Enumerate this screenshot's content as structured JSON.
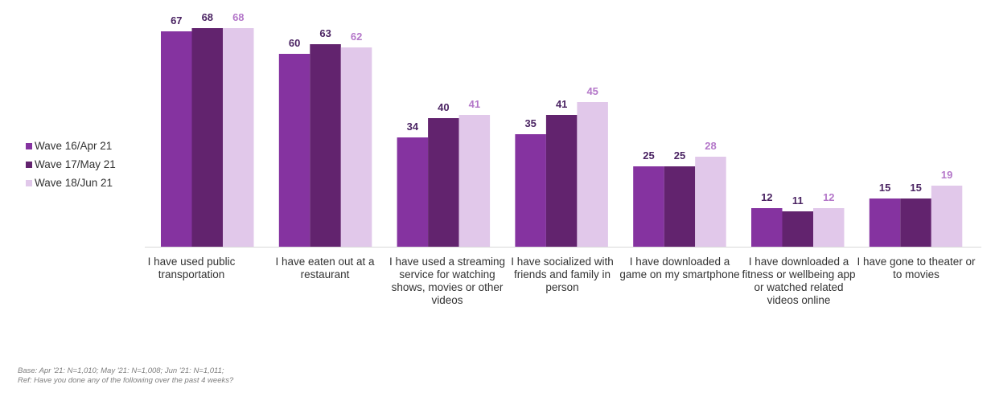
{
  "chart_data": {
    "type": "bar",
    "categories": [
      "I have used public transportation",
      "I have eaten out at a restaurant",
      "I have used a streaming service for watching shows, movies or other videos",
      "I have socialized with friends and family in person",
      "I have downloaded a game on my smartphone",
      "I have downloaded a fitness or wellbeing app or watched related videos online",
      "I have gone to theater or to movies"
    ],
    "series": [
      {
        "name": "Wave 16/Apr 21",
        "color": "#8533a0",
        "label_color": "#4b2463",
        "values": [
          67,
          60,
          34,
          35,
          25,
          12,
          15
        ]
      },
      {
        "name": "Wave 17/May 21",
        "color": "#62236e",
        "label_color": "#4b2463",
        "values": [
          68,
          63,
          40,
          41,
          25,
          11,
          15
        ]
      },
      {
        "name": "Wave 18/Jun 21",
        "color": "#e1c8ea",
        "label_color": "#b477c9",
        "values": [
          68,
          62,
          41,
          45,
          28,
          12,
          19
        ]
      }
    ],
    "ylim": [
      0,
      68
    ],
    "legend_position": "left",
    "grid": false
  },
  "footnotes": {
    "base": "Base: Apr '21: N=1,010; May '21: N=1,008; Jun '21: N=1,011;",
    "ref": "Ref:  Have you done any of the following over the past 4 weeks?"
  }
}
